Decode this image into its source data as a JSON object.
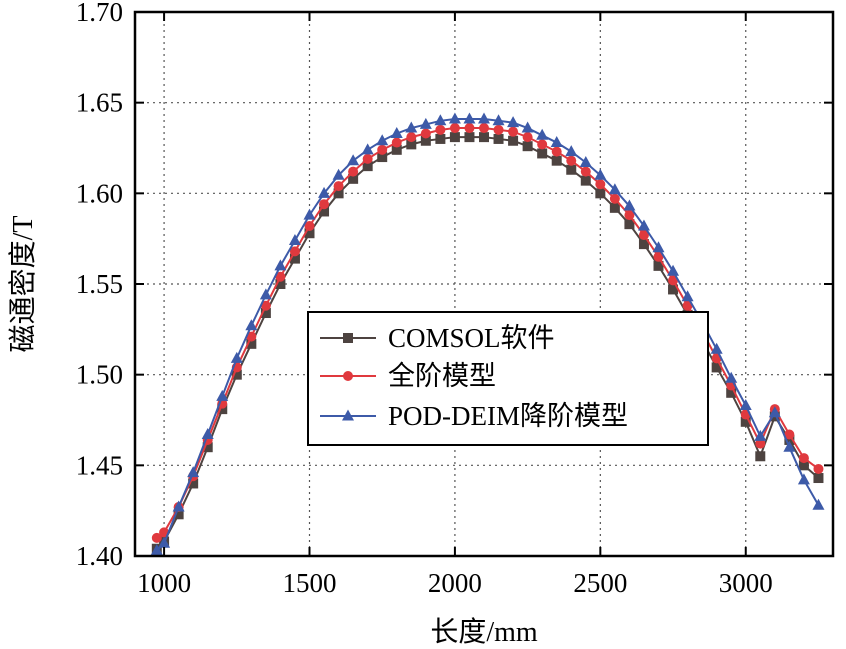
{
  "chart_data": {
    "type": "line",
    "title": "",
    "xlabel": "长度/mm",
    "ylabel": "磁通密度/T",
    "xlim": [
      900,
      3300
    ],
    "ylim": [
      1.4,
      1.7
    ],
    "xticks": [
      1000,
      1500,
      2000,
      2500,
      3000
    ],
    "yticks": [
      1.4,
      1.45,
      1.5,
      1.55,
      1.6,
      1.65,
      1.7
    ],
    "x_tick_labels": [
      "1000",
      "1500",
      "2000",
      "2500",
      "3000"
    ],
    "y_tick_labels": [
      "1.40",
      "1.45",
      "1.50",
      "1.55",
      "1.60",
      "1.65",
      "1.70"
    ],
    "grid": true,
    "legend_position": "center",
    "x": [
      975,
      1000,
      1050,
      1100,
      1150,
      1200,
      1250,
      1300,
      1350,
      1400,
      1450,
      1500,
      1550,
      1600,
      1650,
      1700,
      1750,
      1800,
      1850,
      1900,
      1950,
      2000,
      2050,
      2100,
      2150,
      2200,
      2250,
      2300,
      2350,
      2400,
      2450,
      2500,
      2550,
      2600,
      2650,
      2700,
      2750,
      2800,
      2850,
      2900,
      2950,
      3000,
      3050,
      3100,
      3150,
      3200,
      3250
    ],
    "series": [
      {
        "name": "COMSOL软件",
        "color": "#4d4340",
        "marker": "square",
        "values": [
          1.404,
          1.408,
          1.423,
          1.44,
          1.46,
          1.481,
          1.5,
          1.517,
          1.534,
          1.55,
          1.564,
          1.578,
          1.59,
          1.6,
          1.608,
          1.615,
          1.62,
          1.624,
          1.627,
          1.629,
          1.63,
          1.631,
          1.631,
          1.631,
          1.63,
          1.629,
          1.626,
          1.622,
          1.618,
          1.613,
          1.607,
          1.6,
          1.592,
          1.583,
          1.572,
          1.56,
          1.547,
          1.533,
          1.519,
          1.504,
          1.49,
          1.474,
          1.455,
          1.477,
          1.464,
          1.45,
          1.443
        ]
      },
      {
        "name": "全阶模型",
        "color": "#e0393e",
        "marker": "circle",
        "values": [
          1.41,
          1.413,
          1.427,
          1.444,
          1.464,
          1.484,
          1.504,
          1.521,
          1.538,
          1.554,
          1.568,
          1.582,
          1.594,
          1.604,
          1.612,
          1.619,
          1.624,
          1.628,
          1.631,
          1.633,
          1.635,
          1.636,
          1.636,
          1.636,
          1.635,
          1.634,
          1.631,
          1.627,
          1.623,
          1.618,
          1.612,
          1.605,
          1.597,
          1.588,
          1.577,
          1.565,
          1.552,
          1.538,
          1.524,
          1.509,
          1.494,
          1.478,
          1.462,
          1.481,
          1.467,
          1.454,
          1.448
        ]
      },
      {
        "name": "POD-DEIM降阶模型",
        "color": "#3d5aa8",
        "marker": "triangle",
        "values": [
          1.403,
          1.407,
          1.427,
          1.446,
          1.467,
          1.488,
          1.509,
          1.527,
          1.544,
          1.56,
          1.574,
          1.588,
          1.6,
          1.61,
          1.618,
          1.624,
          1.629,
          1.633,
          1.636,
          1.638,
          1.64,
          1.641,
          1.641,
          1.641,
          1.64,
          1.639,
          1.636,
          1.632,
          1.628,
          1.623,
          1.617,
          1.61,
          1.602,
          1.593,
          1.582,
          1.57,
          1.557,
          1.543,
          1.529,
          1.514,
          1.498,
          1.483,
          1.466,
          1.479,
          1.46,
          1.442,
          1.428
        ]
      }
    ]
  }
}
